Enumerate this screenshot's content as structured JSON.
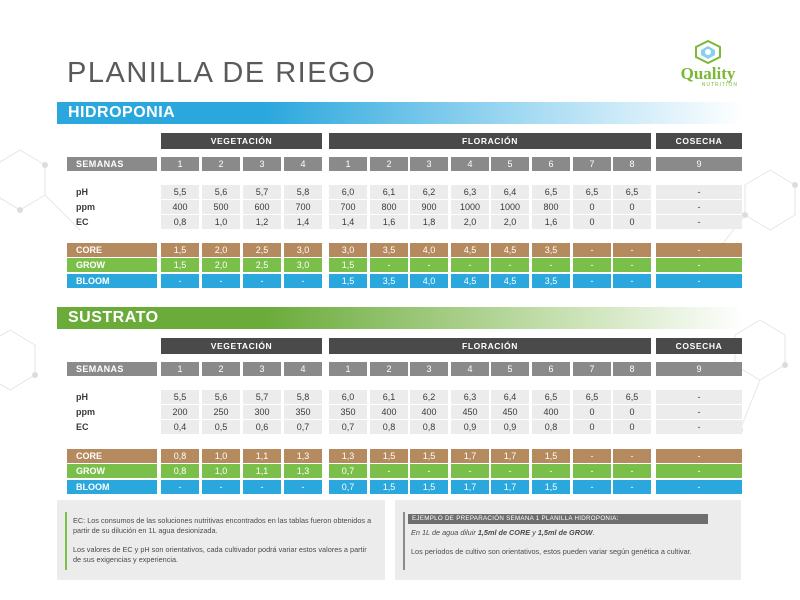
{
  "title": "PLANILLA DE RIEGO",
  "logo": {
    "word": "Quality",
    "sub": "NUTRITION"
  },
  "headers": {
    "veg": "VEGETACIÓN",
    "flor": "FLORACIÓN",
    "cos": "COSECHA"
  },
  "weeks": [
    "1",
    "2",
    "3",
    "4",
    "1",
    "2",
    "3",
    "4",
    "5",
    "6",
    "7",
    "8",
    "9"
  ],
  "labels": {
    "weeks": "SEMANAS",
    "ph": "pH",
    "ppm": "ppm",
    "ec": "EC",
    "core": "CORE",
    "grow": "GROW",
    "bloom": "BLOOM"
  },
  "sections": [
    {
      "name": "HIDROPONIA",
      "rows": {
        "ph": [
          "5,5",
          "5,6",
          "5,7",
          "5,8",
          "6,0",
          "6,1",
          "6,2",
          "6,3",
          "6,4",
          "6,5",
          "6,5",
          "6,5",
          "-"
        ],
        "ppm": [
          "400",
          "500",
          "600",
          "700",
          "700",
          "800",
          "900",
          "1000",
          "1000",
          "800",
          "0",
          "0",
          "-"
        ],
        "ec": [
          "0,8",
          "1,0",
          "1,2",
          "1,4",
          "1,4",
          "1,6",
          "1,8",
          "2,0",
          "2,0",
          "1,6",
          "0",
          "0",
          "-"
        ],
        "core": [
          "1,5",
          "2,0",
          "2,5",
          "3,0",
          "3,0",
          "3,5",
          "4,0",
          "4,5",
          "4,5",
          "3,5",
          "-",
          "-",
          "-"
        ],
        "grow": [
          "1,5",
          "2,0",
          "2,5",
          "3,0",
          "1,5",
          "-",
          "-",
          "-",
          "-",
          "-",
          "-",
          "-",
          "-"
        ],
        "bloom": [
          "-",
          "-",
          "-",
          "-",
          "1,5",
          "3,5",
          "4,0",
          "4,5",
          "4,5",
          "3,5",
          "-",
          "-",
          "-"
        ]
      }
    },
    {
      "name": "SUSTRATO",
      "rows": {
        "ph": [
          "5,5",
          "5,6",
          "5,7",
          "5,8",
          "6,0",
          "6,1",
          "6,2",
          "6,3",
          "6,4",
          "6,5",
          "6,5",
          "6,5",
          "-"
        ],
        "ppm": [
          "200",
          "250",
          "300",
          "350",
          "350",
          "400",
          "400",
          "450",
          "450",
          "400",
          "0",
          "0",
          "-"
        ],
        "ec": [
          "0,4",
          "0,5",
          "0,6",
          "0,7",
          "0,7",
          "0,8",
          "0,8",
          "0,9",
          "0,9",
          "0,8",
          "0",
          "0",
          "-"
        ],
        "core": [
          "0,8",
          "1,0",
          "1,1",
          "1,3",
          "1,3",
          "1,5",
          "1,5",
          "1,7",
          "1,7",
          "1,5",
          "-",
          "-",
          "-"
        ],
        "grow": [
          "0,8",
          "1,0",
          "1,1",
          "1,3",
          "0,7",
          "-",
          "-",
          "-",
          "-",
          "-",
          "-",
          "-",
          "-"
        ],
        "bloom": [
          "-",
          "-",
          "-",
          "-",
          "0,7",
          "1,5",
          "1,5",
          "1,7",
          "1,7",
          "1,5",
          "-",
          "-",
          "-"
        ]
      }
    }
  ],
  "notes": {
    "left_p1": "EC: Los consumos de las soluciones nutritivas encontrados en las tablas fueron obtenidos a partir de su dilución en 1L agua desionizada.",
    "left_p2": "Los valores de EC y pH son orientativos, cada cultivador podrá variar estos valores a partir de sus exigencias y experiencia.",
    "right_header": "EJEMPLO DE PREPARACIÓN SEMANA 1 PLANILLA HIDROPONIA:",
    "right_ex_a": "En 1L de agua diluir ",
    "right_ex_b": "1,5ml de CORE",
    "right_ex_c": " y ",
    "right_ex_d": "1,5ml de GROW",
    "right_ex_e": ".",
    "right_p2": "Los períodos de cultivo son orientativos, estos pueden variar según genética a cultivar."
  },
  "colors": {
    "blue": "#2aa7dd",
    "green": "#7bbf4b",
    "brown": "#b58a5e",
    "dark": "#4a4a4a",
    "grey": "#8a8a8a"
  }
}
